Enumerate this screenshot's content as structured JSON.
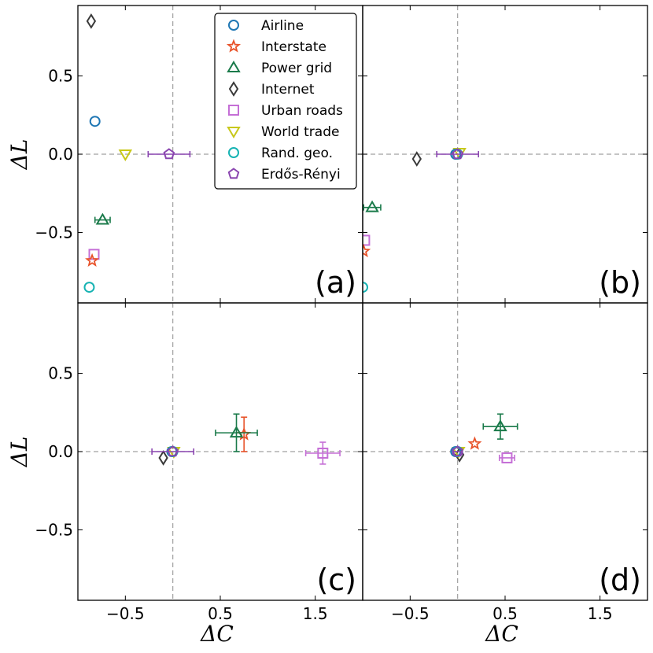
{
  "chart_data": {
    "type": "scatter",
    "xlabel": "ΔC",
    "ylabel": "ΔL",
    "xlim": [
      -1.0,
      2.0
    ],
    "ylim": [
      -0.95,
      0.95
    ],
    "xticks": [
      -0.5,
      0.5,
      1.5
    ],
    "yticks": [
      -0.5,
      0.0,
      0.5
    ],
    "xtick_labels": [
      "−0.5",
      "0.5",
      "1.5"
    ],
    "ytick_labels": [
      "−0.5",
      "0.0",
      "0.5"
    ],
    "reference_lines": {
      "x": 0,
      "y": 0
    },
    "legend": {
      "location": "top-right of panel (a)",
      "entries": [
        {
          "name": "Airline",
          "marker": "circle",
          "color": "#1f77b4"
        },
        {
          "name": "Interstate",
          "marker": "star",
          "color": "#e8532a"
        },
        {
          "name": "Power grid",
          "marker": "triangle-up",
          "color": "#1a7a4a"
        },
        {
          "name": "Internet",
          "marker": "diamond",
          "color": "#3a3a3a"
        },
        {
          "name": "Urban roads",
          "marker": "square",
          "color": "#c56fd6"
        },
        {
          "name": "World trade",
          "marker": "triangle-down",
          "color": "#c8c81a"
        },
        {
          "name": "Rand. geo.",
          "marker": "circle",
          "color": "#17b3b3"
        },
        {
          "name": "Erdős-Rényi",
          "marker": "pentagon",
          "color": "#8a45b0"
        }
      ]
    },
    "panels": [
      {
        "label": "(a)",
        "points": [
          {
            "series": "Internet",
            "x": -0.86,
            "y": 0.85
          },
          {
            "series": "Airline",
            "x": -0.82,
            "y": 0.21
          },
          {
            "series": "World trade",
            "x": -0.5,
            "y": 0.0
          },
          {
            "series": "Erdős-Rényi",
            "x": -0.04,
            "y": 0.0,
            "xerr": 0.22,
            "yerr": 0
          },
          {
            "series": "Power grid",
            "x": -0.74,
            "y": -0.42,
            "xerr": 0.08,
            "yerr": 0
          },
          {
            "series": "Urban roads",
            "x": -0.83,
            "y": -0.64
          },
          {
            "series": "Interstate",
            "x": -0.85,
            "y": -0.68
          },
          {
            "series": "Rand. geo.",
            "x": -0.88,
            "y": -0.85
          }
        ]
      },
      {
        "label": "(b)",
        "points": [
          {
            "series": "Internet",
            "x": -0.43,
            "y": -0.03
          },
          {
            "series": "World trade",
            "x": 0.02,
            "y": 0.01
          },
          {
            "series": "Airline",
            "x": -0.02,
            "y": 0.0
          },
          {
            "series": "Rand. geo.",
            "x": 0.0,
            "y": 0.0
          },
          {
            "series": "Erdős-Rényi",
            "x": 0.0,
            "y": 0.0,
            "xerr": 0.22,
            "yerr": 0
          },
          {
            "series": "Power grid",
            "x": -0.9,
            "y": -0.34,
            "xerr": 0.09,
            "yerr": 0
          },
          {
            "series": "Urban roads",
            "x": -0.98,
            "y": -0.55
          },
          {
            "series": "Interstate",
            "x": -0.99,
            "y": -0.62
          },
          {
            "series": "Rand. geo.",
            "x": -1.0,
            "y": -0.85
          }
        ]
      },
      {
        "label": "(c)",
        "points": [
          {
            "series": "Internet",
            "x": -0.1,
            "y": -0.04
          },
          {
            "series": "World trade",
            "x": 0.01,
            "y": 0.0
          },
          {
            "series": "Airline",
            "x": -0.01,
            "y": 0.0
          },
          {
            "series": "Rand. geo.",
            "x": 0.0,
            "y": 0.0
          },
          {
            "series": "Erdős-Rényi",
            "x": 0.0,
            "y": 0.0,
            "xerr": 0.22,
            "yerr": 0
          },
          {
            "series": "Interstate",
            "x": 0.75,
            "y": 0.11,
            "xerr": 0,
            "yerr": 0.11
          },
          {
            "series": "Power grid",
            "x": 0.67,
            "y": 0.12,
            "xerr": 0.22,
            "yerr": 0.12
          },
          {
            "series": "Urban roads",
            "x": 1.58,
            "y": -0.01,
            "xerr": 0.18,
            "yerr": 0.07
          }
        ]
      },
      {
        "label": "(d)",
        "points": [
          {
            "series": "Internet",
            "x": 0.02,
            "y": -0.02
          },
          {
            "series": "World trade",
            "x": 0.01,
            "y": 0.0
          },
          {
            "series": "Airline",
            "x": -0.02,
            "y": 0.0
          },
          {
            "series": "Rand. geo.",
            "x": 0.0,
            "y": 0.0
          },
          {
            "series": "Erdős-Rényi",
            "x": 0.0,
            "y": 0.0,
            "xerr": 0.05,
            "yerr": 0
          },
          {
            "series": "Interstate",
            "x": 0.18,
            "y": 0.05
          },
          {
            "series": "Power grid",
            "x": 0.45,
            "y": 0.16,
            "xerr": 0.18,
            "yerr": 0.08
          },
          {
            "series": "Urban roads",
            "x": 0.52,
            "y": -0.04,
            "xerr": 0.08,
            "yerr": 0
          }
        ]
      }
    ]
  }
}
